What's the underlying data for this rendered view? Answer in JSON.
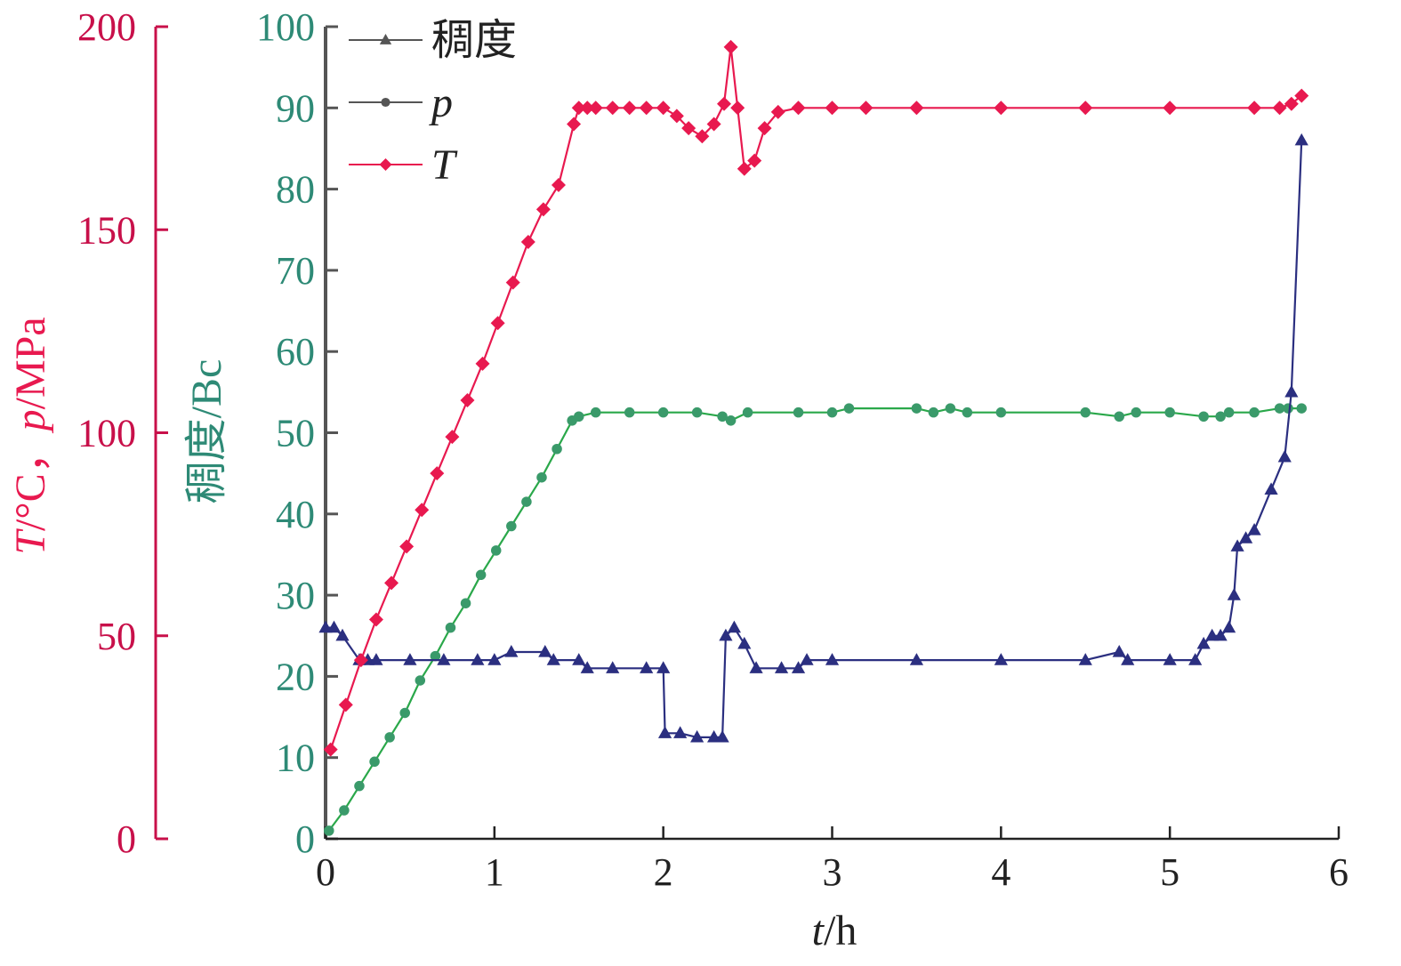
{
  "chart_data": {
    "type": "line",
    "colors": {
      "temperature": "#e8194f",
      "pressure_line": "#2aa84a",
      "pressure_marker": "#3a9a6a",
      "consistency": "#2b2f80",
      "left_axis": "#c8104a",
      "middle_axis": "#2e8a76",
      "axis_dark": "#222222",
      "legend_line": "#555555"
    },
    "x_axis": {
      "title_italic": "t",
      "title_rest": "/h",
      "range": [
        0,
        6
      ],
      "ticks": [
        "0",
        "1",
        "2",
        "3",
        "4",
        "5",
        "6"
      ]
    },
    "left_axis": {
      "title_parts": [
        "T",
        "/°C，",
        "p",
        "/MPa"
      ],
      "range": [
        0,
        200
      ],
      "ticks": [
        "0",
        "50",
        "100",
        "150",
        "200"
      ]
    },
    "middle_axis": {
      "title": "稠度/Bc",
      "range": [
        0,
        100
      ],
      "ticks": [
        "0",
        "10",
        "20",
        "30",
        "40",
        "50",
        "60",
        "70",
        "80",
        "90",
        "100"
      ]
    },
    "legend": {
      "placement": "top-left",
      "entries": [
        {
          "label": "稠度",
          "italic": false,
          "marker": "triangle",
          "color_key": "legend_line"
        },
        {
          "label": "p",
          "italic": true,
          "marker": "circle",
          "color_key": "legend_line"
        },
        {
          "label": "T",
          "italic": true,
          "marker": "diamond",
          "color_key": "temperature"
        }
      ]
    },
    "series": [
      {
        "key": "T",
        "axis": "left",
        "marker": "diamond",
        "color_key": "temperature",
        "x": [
          0.03,
          0.12,
          0.21,
          0.3,
          0.39,
          0.48,
          0.57,
          0.66,
          0.75,
          0.84,
          0.93,
          1.02,
          1.11,
          1.2,
          1.29,
          1.38,
          1.47,
          1.5,
          1.55,
          1.6,
          1.7,
          1.8,
          1.9,
          2.0,
          2.08,
          2.15,
          2.23,
          2.3,
          2.36,
          2.4,
          2.44,
          2.48,
          2.54,
          2.6,
          2.68,
          2.8,
          3.0,
          3.2,
          3.5,
          4.0,
          4.5,
          5.0,
          5.5,
          5.65,
          5.72,
          5.78
        ],
        "y": [
          22,
          33,
          44,
          54,
          63,
          72,
          81,
          90,
          99,
          108,
          117,
          127,
          137,
          147,
          155,
          161,
          176,
          180,
          180,
          180,
          180,
          180,
          180,
          180,
          178,
          175,
          173,
          176,
          181,
          195,
          180,
          165,
          167,
          175,
          179,
          180,
          180,
          180,
          180,
          180,
          180,
          180,
          180,
          180,
          181,
          183
        ]
      },
      {
        "key": "p",
        "axis": "left",
        "marker": "circle",
        "color_key": "pressure_line",
        "marker_color_key": "pressure_marker",
        "x": [
          0.02,
          0.11,
          0.2,
          0.29,
          0.38,
          0.47,
          0.56,
          0.65,
          0.74,
          0.83,
          0.92,
          1.01,
          1.1,
          1.19,
          1.28,
          1.37,
          1.46,
          1.5,
          1.6,
          1.8,
          2.0,
          2.2,
          2.35,
          2.4,
          2.5,
          2.8,
          3.0,
          3.1,
          3.5,
          3.6,
          3.7,
          3.8,
          4.0,
          4.5,
          4.7,
          4.8,
          5.0,
          5.2,
          5.3,
          5.35,
          5.5,
          5.65,
          5.7,
          5.78
        ],
        "y": [
          2,
          7,
          13,
          19,
          25,
          31,
          39,
          45,
          52,
          58,
          65,
          71,
          77,
          83,
          89,
          96,
          103,
          104,
          105,
          105,
          105,
          105,
          104,
          103,
          105,
          105,
          105,
          106,
          106,
          105,
          106,
          105,
          105,
          105,
          104,
          105,
          105,
          104,
          104,
          105,
          105,
          106,
          106,
          106
        ]
      },
      {
        "key": "稠度",
        "axis": "middle",
        "marker": "triangle",
        "color_key": "consistency",
        "x": [
          0.0,
          0.05,
          0.1,
          0.2,
          0.25,
          0.3,
          0.5,
          0.7,
          0.9,
          1.0,
          1.1,
          1.3,
          1.35,
          1.5,
          1.55,
          1.7,
          1.9,
          2.0,
          2.01,
          2.1,
          2.2,
          2.3,
          2.35,
          2.37,
          2.42,
          2.48,
          2.55,
          2.7,
          2.8,
          2.85,
          3.0,
          3.5,
          4.0,
          4.5,
          4.7,
          4.75,
          5.0,
          5.15,
          5.2,
          5.25,
          5.3,
          5.35,
          5.38,
          5.4,
          5.45,
          5.5,
          5.6,
          5.68,
          5.72,
          5.78
        ],
        "y": [
          26,
          26,
          25,
          22,
          22,
          22,
          22,
          22,
          22,
          22,
          23,
          23,
          22,
          22,
          21,
          21,
          21,
          21,
          13,
          13,
          12.5,
          12.5,
          12.5,
          25,
          26,
          24,
          21,
          21,
          21,
          22,
          22,
          22,
          22,
          22,
          23,
          22,
          22,
          22,
          24,
          25,
          25,
          26,
          30,
          36,
          37,
          38,
          43,
          47,
          55,
          86
        ]
      }
    ]
  }
}
